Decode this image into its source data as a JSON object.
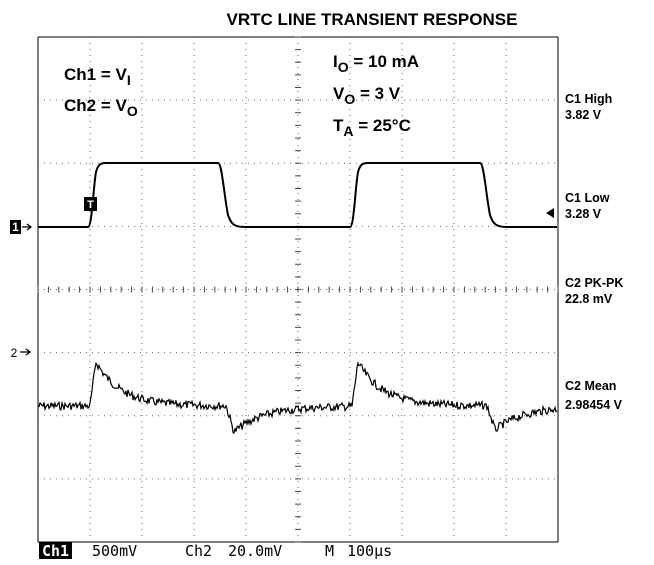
{
  "title": "VRTC LINE TRANSIENT RESPONSE",
  "legend": [
    {
      "label": "Ch1 = V",
      "sub": "I"
    },
    {
      "label": "Ch2 = V",
      "sub": "O"
    }
  ],
  "conditions": [
    {
      "label": "I",
      "sub": "O",
      "rest": " = 10 mA"
    },
    {
      "label": "V",
      "sub": "O",
      "rest": " = 3 V"
    },
    {
      "label": "T",
      "sub": "A",
      "rest": " = 25°C"
    }
  ],
  "measurements": [
    {
      "name": "C1 High",
      "value": "3.82 V"
    },
    {
      "name": "C1 Low",
      "value": "3.28 V"
    },
    {
      "name": "C2 PK-PK",
      "value": "22.8 mV"
    },
    {
      "name": "C2 Mean",
      "value": "2.98454 V"
    }
  ],
  "markers": {
    "ch1": "1",
    "ch2": "2",
    "trigger": "T"
  },
  "footer": {
    "ch1": "Ch1",
    "ch1_scale": "500mV",
    "ch2": "Ch2",
    "ch2_scale": "20.0mV",
    "time": "M",
    "time_scale": "100µs"
  }
}
